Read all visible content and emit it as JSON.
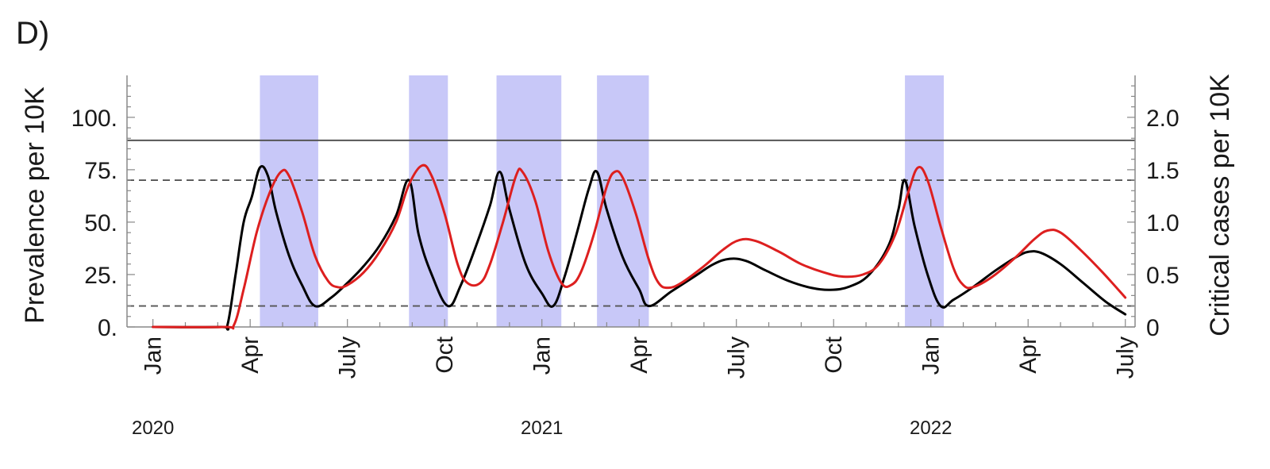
{
  "chart_data": {
    "type": "line",
    "panel_label": "D)",
    "ylabel_left": "Prevalence per 10K",
    "ylabel_right": "Critical cases per 10K",
    "x_unit": "months since Jan 2020",
    "xlim": [
      -0.8,
      30.3
    ],
    "ylim_left": [
      0,
      120
    ],
    "ylim_right": [
      0,
      2.4
    ],
    "grid": false,
    "legend": "none",
    "x_ticks": [
      {
        "x": 0,
        "label": "Jan"
      },
      {
        "x": 3,
        "label": "Apr"
      },
      {
        "x": 6,
        "label": "July"
      },
      {
        "x": 9,
        "label": "Oct"
      },
      {
        "x": 12,
        "label": "Jan"
      },
      {
        "x": 15,
        "label": "Apr"
      },
      {
        "x": 18,
        "label": "July"
      },
      {
        "x": 21,
        "label": "Oct"
      },
      {
        "x": 24,
        "label": "Jan"
      },
      {
        "x": 27,
        "label": "Apr"
      },
      {
        "x": 30,
        "label": "July"
      }
    ],
    "year_labels": [
      {
        "x": 0,
        "label": "2020"
      },
      {
        "x": 12,
        "label": "2021"
      },
      {
        "x": 24,
        "label": "2022"
      }
    ],
    "y_ticks_left": [
      {
        "y": 0,
        "label": "0."
      },
      {
        "y": 25,
        "label": "25."
      },
      {
        "y": 50,
        "label": "50."
      },
      {
        "y": 75,
        "label": "75."
      },
      {
        "y": 100,
        "label": "100."
      }
    ],
    "y_ticks_right": [
      {
        "y": 0,
        "label": "0"
      },
      {
        "y": 0.5,
        "label": "0.5"
      },
      {
        "y": 1.0,
        "label": "1.0"
      },
      {
        "y": 1.5,
        "label": "1.5"
      },
      {
        "y": 2.0,
        "label": "2.0"
      }
    ],
    "shaded_intervals": [
      [
        3.3,
        5.1
      ],
      [
        7.9,
        9.1
      ],
      [
        10.6,
        12.6
      ],
      [
        13.7,
        15.3
      ],
      [
        23.2,
        24.4
      ]
    ],
    "reference_lines": [
      {
        "y": 89,
        "style": "solid",
        "color": "#555555"
      },
      {
        "y": 70,
        "style": "dashed",
        "color": "#555555"
      },
      {
        "y": 10,
        "style": "dashed",
        "color": "#555555"
      }
    ],
    "series": [
      {
        "color": "#000000",
        "points": [
          [
            0,
            0
          ],
          [
            2.1,
            0
          ],
          [
            2.3,
            1
          ],
          [
            2.55,
            25
          ],
          [
            2.8,
            50
          ],
          [
            3.05,
            62
          ],
          [
            3.3,
            76
          ],
          [
            3.55,
            72
          ],
          [
            3.8,
            55
          ],
          [
            4.2,
            34
          ],
          [
            4.6,
            20
          ],
          [
            5.0,
            10
          ],
          [
            5.5,
            14
          ],
          [
            6,
            21
          ],
          [
            6.5,
            29
          ],
          [
            7,
            39
          ],
          [
            7.5,
            53
          ],
          [
            7.9,
            70
          ],
          [
            8.2,
            44
          ],
          [
            8.6,
            25
          ],
          [
            9.1,
            10
          ],
          [
            9.5,
            20
          ],
          [
            10.0,
            40
          ],
          [
            10.4,
            58
          ],
          [
            10.7,
            74
          ],
          [
            11.0,
            56
          ],
          [
            11.5,
            30
          ],
          [
            12.0,
            16
          ],
          [
            12.35,
            10
          ],
          [
            12.7,
            24
          ],
          [
            13.1,
            46
          ],
          [
            13.45,
            66
          ],
          [
            13.7,
            74
          ],
          [
            14.0,
            56
          ],
          [
            14.5,
            33
          ],
          [
            15.0,
            18
          ],
          [
            15.3,
            10
          ],
          [
            16,
            17
          ],
          [
            16.7,
            24
          ],
          [
            17.3,
            30
          ],
          [
            17.8,
            32.5
          ],
          [
            18.3,
            31.5
          ],
          [
            18.9,
            27
          ],
          [
            19.6,
            22
          ],
          [
            20.3,
            18.7
          ],
          [
            20.9,
            17.7
          ],
          [
            21.5,
            19.3
          ],
          [
            22.1,
            25
          ],
          [
            22.7,
            39
          ],
          [
            23.0,
            56
          ],
          [
            23.2,
            70
          ],
          [
            23.5,
            48
          ],
          [
            23.9,
            25
          ],
          [
            24.3,
            10
          ],
          [
            24.7,
            13
          ],
          [
            25.3,
            19
          ],
          [
            26.0,
            27
          ],
          [
            26.6,
            33
          ],
          [
            27.0,
            35.8
          ],
          [
            27.4,
            35.3
          ],
          [
            28.0,
            30
          ],
          [
            28.7,
            21
          ],
          [
            29.4,
            12
          ],
          [
            30.0,
            6
          ]
        ]
      },
      {
        "color": "#dd1f1f",
        "points": [
          [
            0,
            0
          ],
          [
            2.2,
            0
          ],
          [
            2.5,
            1
          ],
          [
            2.8,
            18
          ],
          [
            3.2,
            45
          ],
          [
            3.6,
            64
          ],
          [
            3.95,
            74
          ],
          [
            4.2,
            72
          ],
          [
            4.6,
            55
          ],
          [
            5.0,
            34
          ],
          [
            5.4,
            22
          ],
          [
            5.7,
            19
          ],
          [
            6,
            20
          ],
          [
            6.5,
            26
          ],
          [
            7,
            36
          ],
          [
            7.5,
            50
          ],
          [
            7.9,
            68
          ],
          [
            8.3,
            77
          ],
          [
            8.6,
            72
          ],
          [
            9.0,
            54
          ],
          [
            9.4,
            30
          ],
          [
            9.7,
            21
          ],
          [
            10.1,
            21
          ],
          [
            10.4,
            30
          ],
          [
            10.8,
            50
          ],
          [
            11.2,
            72
          ],
          [
            11.4,
            74
          ],
          [
            11.8,
            60
          ],
          [
            12.2,
            36
          ],
          [
            12.6,
            21
          ],
          [
            12.9,
            20
          ],
          [
            13.2,
            26
          ],
          [
            13.6,
            44
          ],
          [
            14.0,
            67
          ],
          [
            14.25,
            74
          ],
          [
            14.5,
            71
          ],
          [
            14.9,
            54
          ],
          [
            15.3,
            32
          ],
          [
            15.6,
            21
          ],
          [
            15.9,
            18.7
          ],
          [
            16.3,
            21
          ],
          [
            17,
            29
          ],
          [
            17.6,
            37
          ],
          [
            18.1,
            41.5
          ],
          [
            18.6,
            41
          ],
          [
            19.3,
            36
          ],
          [
            20,
            30
          ],
          [
            20.7,
            26
          ],
          [
            21.3,
            24
          ],
          [
            21.9,
            25
          ],
          [
            22.4,
            30
          ],
          [
            22.9,
            44
          ],
          [
            23.3,
            64
          ],
          [
            23.6,
            76
          ],
          [
            23.9,
            70
          ],
          [
            24.3,
            48
          ],
          [
            24.7,
            28
          ],
          [
            25.0,
            20
          ],
          [
            25.3,
            19
          ],
          [
            25.9,
            24
          ],
          [
            26.6,
            33
          ],
          [
            27.2,
            42
          ],
          [
            27.6,
            46
          ],
          [
            28.0,
            45
          ],
          [
            28.6,
            37
          ],
          [
            29.3,
            26
          ],
          [
            30.0,
            14
          ]
        ]
      }
    ]
  }
}
